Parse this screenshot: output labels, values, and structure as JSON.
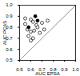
{
  "chart_data": {
    "type": "scatter",
    "x_label": "AUC EPSA",
    "y_label": "AUC PCAS",
    "xlim": [
      0.5,
      1
    ],
    "ylim": [
      0.5,
      1
    ],
    "xticks": [
      0.5,
      0.6,
      0.7,
      0.8,
      0.9,
      {
        "value": 1,
        "label": "1.0"
      }
    ],
    "yticks": [
      0.5,
      0.6,
      0.7,
      0.8,
      0.9,
      {
        "value": 1,
        "label": "1.0"
      }
    ],
    "color": "#000000",
    "series": [
      {
        "marker": "open",
        "x": [
          0.55,
          0.6,
          0.62,
          0.65,
          0.57,
          0.6,
          0.63,
          0.58,
          0.66,
          0.7,
          0.55,
          0.68,
          0.62,
          0.72,
          0.6,
          0.75
        ],
        "values": [
          0.83,
          0.87,
          0.85,
          0.82,
          0.78,
          0.76,
          0.77,
          0.72,
          0.8,
          0.84,
          0.88,
          0.75,
          0.7,
          0.78,
          0.68,
          0.86
        ]
      },
      {
        "marker": "filled",
        "x": [
          0.64,
          0.58,
          0.66
        ],
        "values": [
          0.9,
          0.8,
          0.86
        ]
      }
    ]
  }
}
